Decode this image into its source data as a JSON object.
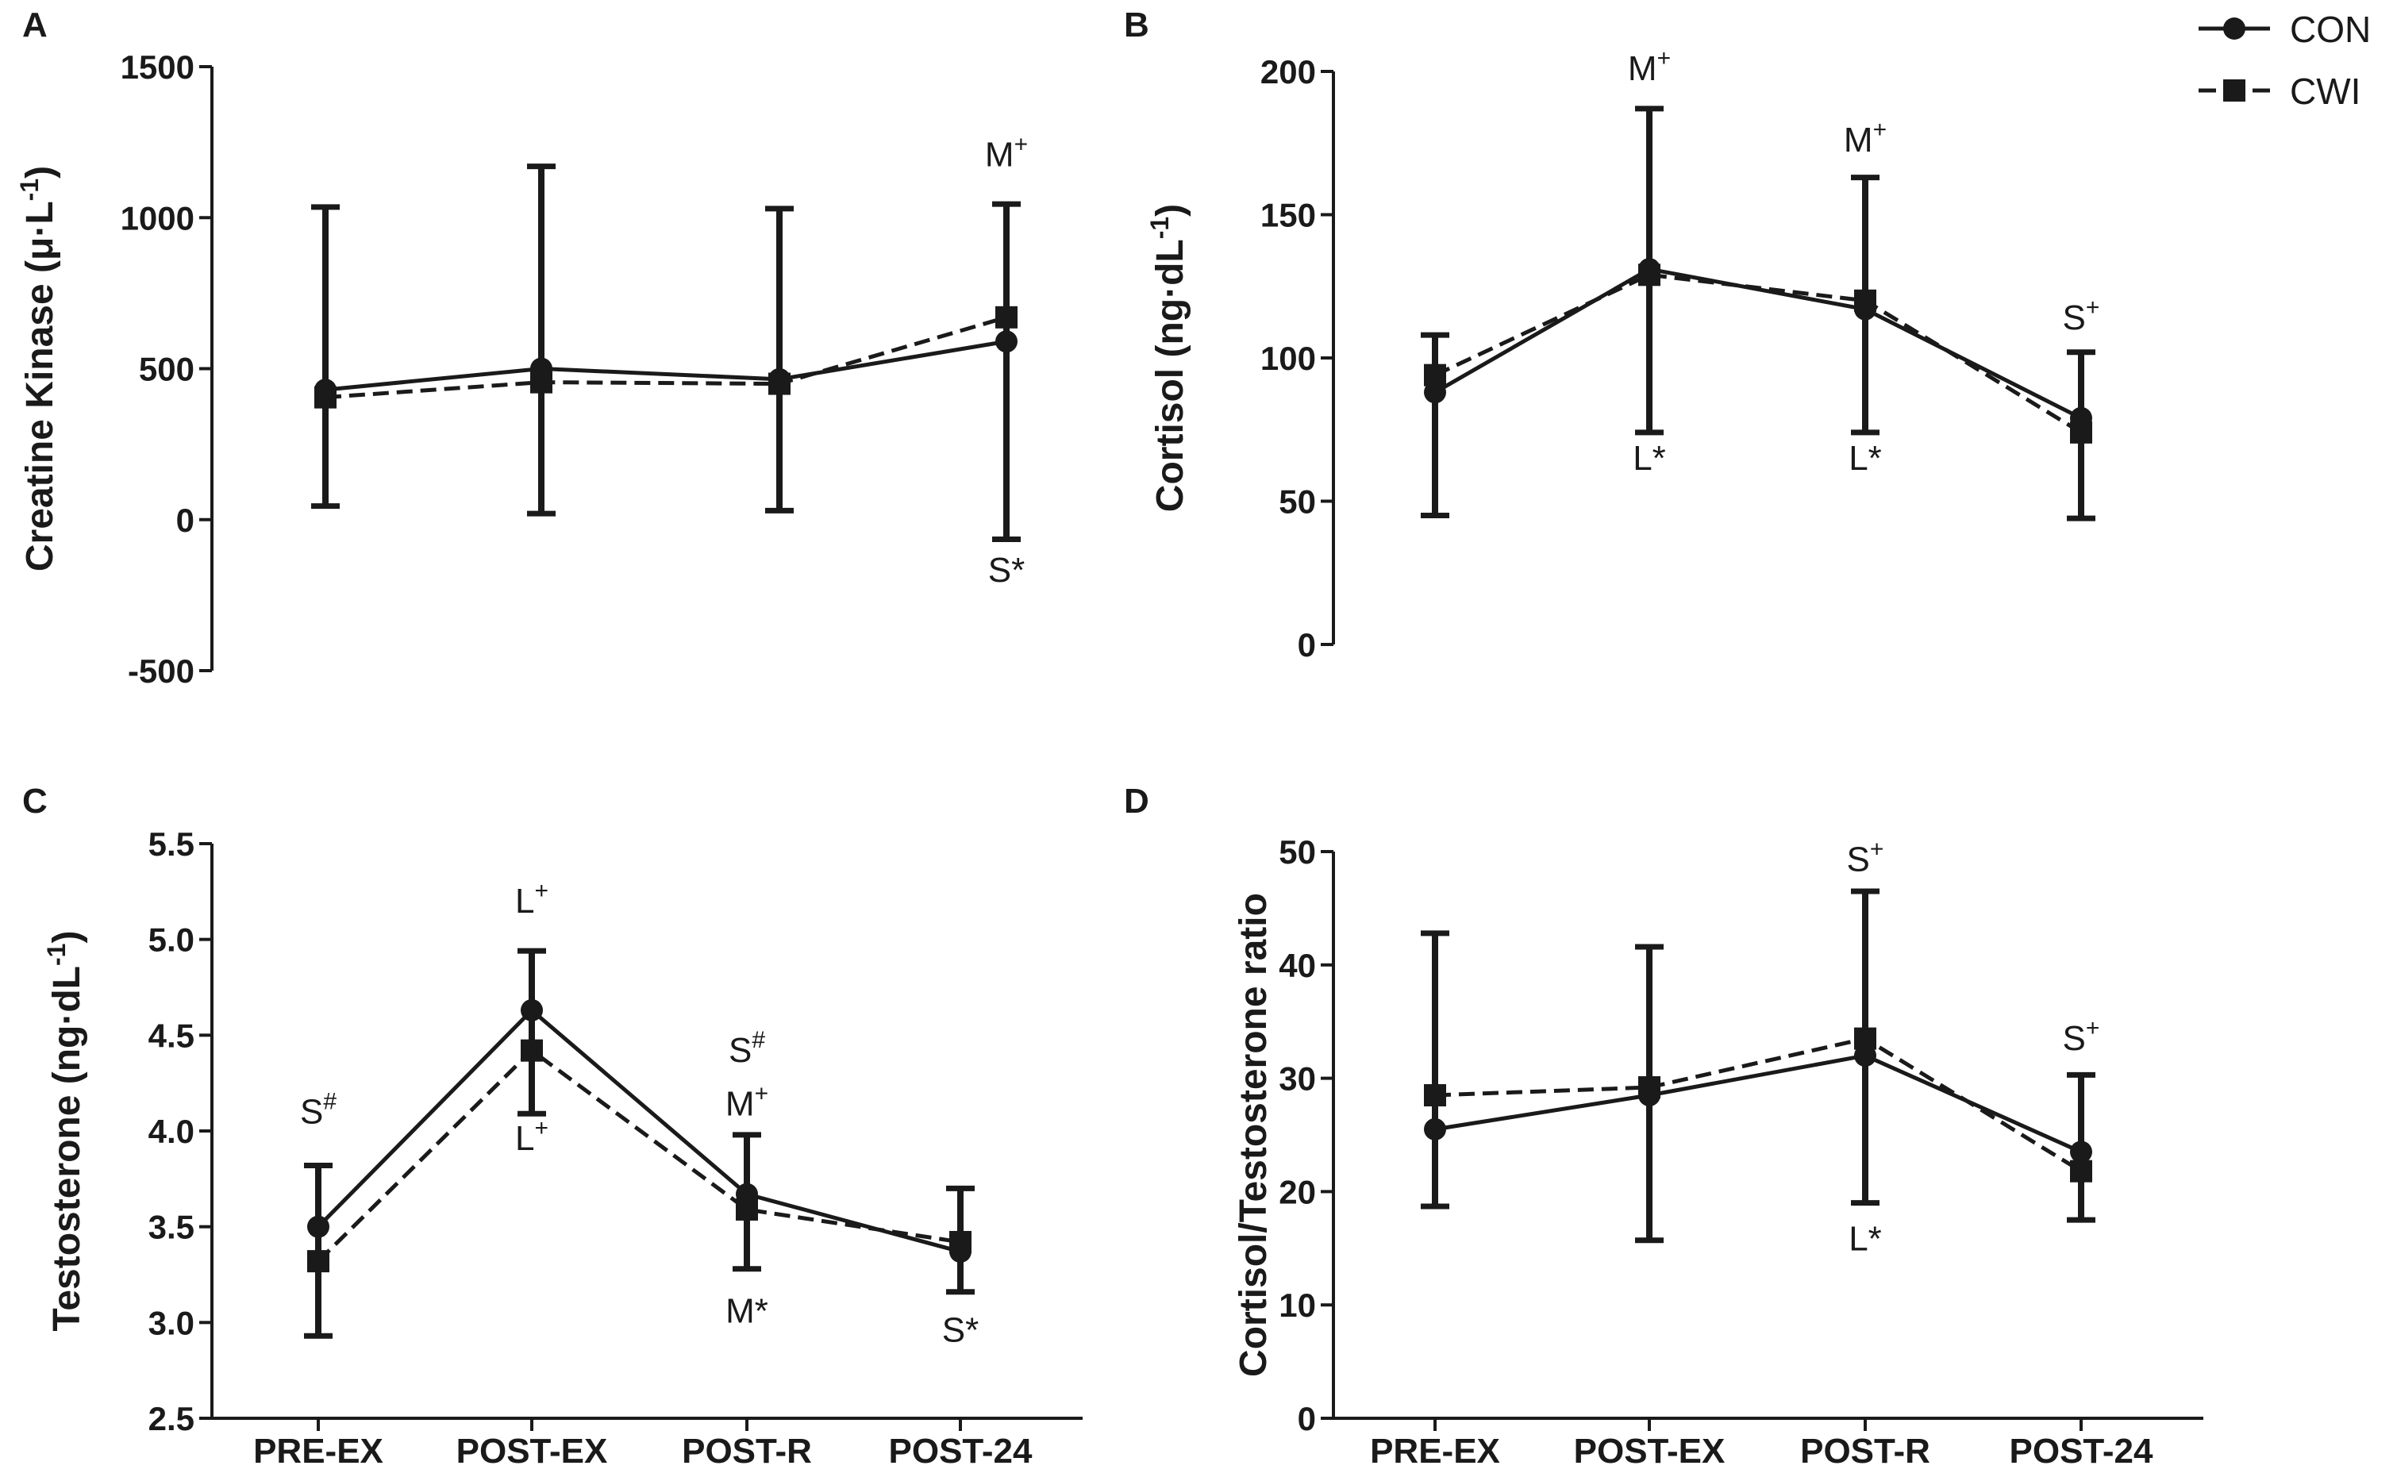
{
  "legend": [
    {
      "name": "CON",
      "marker": "circle",
      "line": "solid"
    },
    {
      "name": "CWI",
      "marker": "square",
      "line": "dashed"
    }
  ],
  "colors": {
    "ink": "#1a1a1a",
    "background": "#ffffff"
  },
  "chart_data": [
    {
      "panel": "A",
      "type": "line",
      "ylabel": "Creatine Kinase (μ·L",
      "ylabel_sup": "-1",
      "ylabel_close": ")",
      "ylim": [
        -500,
        1500
      ],
      "yticks": [
        -500,
        0,
        500,
        1000,
        1500
      ],
      "ytick_labels": [
        "-500",
        "0",
        "500",
        "1000",
        "1500"
      ],
      "categories": [
        "PRE-EX",
        "POST-EX",
        "POST-R",
        "POST-24"
      ],
      "show_xticks": false,
      "series": [
        {
          "name": "CON",
          "values": [
            430,
            500,
            465,
            590
          ]
        },
        {
          "name": "CWI",
          "values": [
            405,
            455,
            450,
            670
          ]
        }
      ],
      "errorbars": [
        {
          "low": 45,
          "high": 1035
        },
        {
          "low": 20,
          "high": 1170
        },
        {
          "low": 30,
          "high": 1030
        },
        {
          "low": -65,
          "high": 1045
        }
      ],
      "annotations": [
        {
          "index": 3,
          "value": 1170,
          "text": "M",
          "sup": "+"
        },
        {
          "index": 3,
          "value": -205,
          "text": "S*",
          "sup": ""
        }
      ]
    },
    {
      "panel": "B",
      "type": "line",
      "ylabel": "Cortisol (ng·dL",
      "ylabel_sup": "-1",
      "ylabel_close": ")",
      "ylim": [
        0,
        200
      ],
      "yticks": [
        0,
        50,
        100,
        150,
        200
      ],
      "ytick_labels": [
        "0",
        "50",
        "100",
        "150",
        "200"
      ],
      "categories": [
        "PRE-EX",
        "POST-EX",
        "POST-R",
        "POST-24"
      ],
      "show_xticks": false,
      "series": [
        {
          "name": "CON",
          "values": [
            88,
            131,
            117,
            79
          ]
        },
        {
          "name": "CWI",
          "values": [
            94,
            129,
            120,
            74
          ]
        }
      ],
      "errorbars": [
        {
          "low": 45,
          "high": 108
        },
        {
          "low": 74,
          "high": 187
        },
        {
          "low": 74,
          "high": 163
        },
        {
          "low": 44,
          "high": 102
        }
      ],
      "annotations": [
        {
          "index": 1,
          "value": 197,
          "text": "M",
          "sup": "+"
        },
        {
          "index": 1,
          "value": 61,
          "text": "L*",
          "sup": ""
        },
        {
          "index": 2,
          "value": 172,
          "text": "M",
          "sup": "+"
        },
        {
          "index": 2,
          "value": 61,
          "text": "L*",
          "sup": ""
        },
        {
          "index": 3,
          "value": 110,
          "text": "S",
          "sup": "+"
        }
      ]
    },
    {
      "panel": "C",
      "type": "line",
      "ylabel": "Testosterone (ng·dL",
      "ylabel_sup": "-1",
      "ylabel_close": ")",
      "ylim": [
        2.5,
        5.5
      ],
      "yticks": [
        2.5,
        3.0,
        3.5,
        4.0,
        4.5,
        5.0,
        5.5
      ],
      "ytick_labels": [
        "2.5",
        "3.0",
        "3.5",
        "4.0",
        "4.5",
        "5.0",
        "5.5"
      ],
      "categories": [
        "PRE-EX",
        "POST-EX",
        "POST-R",
        "POST-24"
      ],
      "show_xticks": true,
      "series": [
        {
          "name": "CON",
          "values": [
            3.5,
            4.63,
            3.67,
            3.37
          ]
        },
        {
          "name": "CWI",
          "values": [
            3.32,
            4.42,
            3.59,
            3.42
          ]
        }
      ],
      "errorbars": [
        {
          "low": 2.93,
          "high": 3.82
        },
        {
          "low": 4.09,
          "high": 4.94
        },
        {
          "low": 3.28,
          "high": 3.98
        },
        {
          "low": 3.16,
          "high": 3.7
        }
      ],
      "annotations": [
        {
          "index": 0,
          "value": 4.04,
          "text": "S",
          "sup": "#"
        },
        {
          "index": 1,
          "value": 5.14,
          "text": "L",
          "sup": "+"
        },
        {
          "index": 1,
          "value": 3.9,
          "text": "L",
          "sup": "+"
        },
        {
          "index": 2,
          "value": 4.36,
          "text": "S",
          "sup": "#"
        },
        {
          "index": 2,
          "value": 4.08,
          "text": "M",
          "sup": "+"
        },
        {
          "index": 2,
          "value": 3.0,
          "text": "M*",
          "sup": ""
        },
        {
          "index": 3,
          "value": 2.9,
          "text": "S*",
          "sup": ""
        }
      ]
    },
    {
      "panel": "D",
      "type": "line",
      "ylabel": "Cortisol/Testosterone ratio",
      "ylabel_sup": "",
      "ylabel_close": "",
      "ylim": [
        0,
        50
      ],
      "yticks": [
        0,
        10,
        20,
        30,
        40,
        50
      ],
      "ytick_labels": [
        "0",
        "10",
        "20",
        "30",
        "40",
        "50"
      ],
      "categories": [
        "PRE-EX",
        "POST-EX",
        "POST-R",
        "POST-24"
      ],
      "show_xticks": true,
      "series": [
        {
          "name": "CON",
          "values": [
            25.5,
            28.5,
            32,
            23.5
          ]
        },
        {
          "name": "CWI",
          "values": [
            28.5,
            29.2,
            33.5,
            21.8
          ]
        }
      ],
      "errorbars": [
        {
          "low": 18.7,
          "high": 42.8
        },
        {
          "low": 15.7,
          "high": 41.6
        },
        {
          "low": 19,
          "high": 46.5
        },
        {
          "low": 17.5,
          "high": 30.3
        }
      ],
      "annotations": [
        {
          "index": 2,
          "value": 48.3,
          "text": "S",
          "sup": "+"
        },
        {
          "index": 2,
          "value": 14.8,
          "text": "L*",
          "sup": ""
        },
        {
          "index": 3,
          "value": 32.5,
          "text": "S",
          "sup": "+"
        }
      ]
    }
  ]
}
